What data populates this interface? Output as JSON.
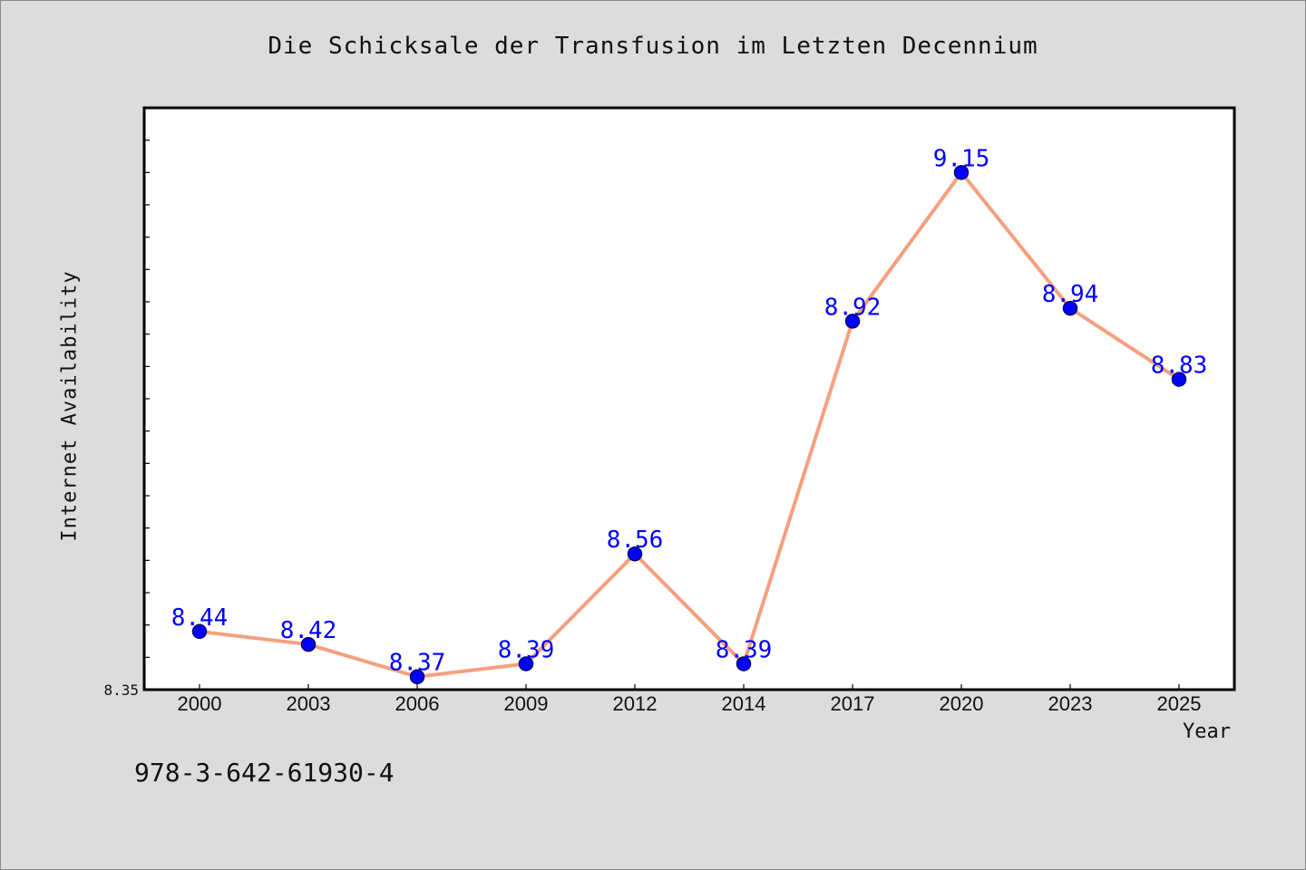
{
  "chart_data": {
    "type": "line",
    "title": "Die Schicksale der Transfusion im Letzten Decennium",
    "xlabel": "Year",
    "ylabel": "Internet Availability",
    "categories": [
      "2000",
      "2003",
      "2006",
      "2009",
      "2012",
      "2014",
      "2017",
      "2020",
      "2023",
      "2025"
    ],
    "series": [
      {
        "values": [
          8.44,
          8.42,
          8.37,
          8.39,
          8.56,
          8.39,
          8.92,
          9.15,
          8.94,
          8.83
        ],
        "labels": [
          "8.44",
          "8.42",
          "8.37",
          "8.39",
          "8.56",
          "8.39",
          "8.92",
          "9.15",
          "8.94",
          "8.83"
        ]
      }
    ],
    "ylim": [
      8.35,
      9.25
    ],
    "y_tick_label": "8.35",
    "grid": false,
    "colors": {
      "line": "#f4a07e",
      "marker": "#0000ff",
      "marker_edge": "#00006e",
      "data_label": "#0000ff",
      "plot_bg": "#ffffff",
      "figure_bg": "#dcdcdc"
    }
  },
  "footer": {
    "isbn": "978-3-642-61930-4"
  }
}
